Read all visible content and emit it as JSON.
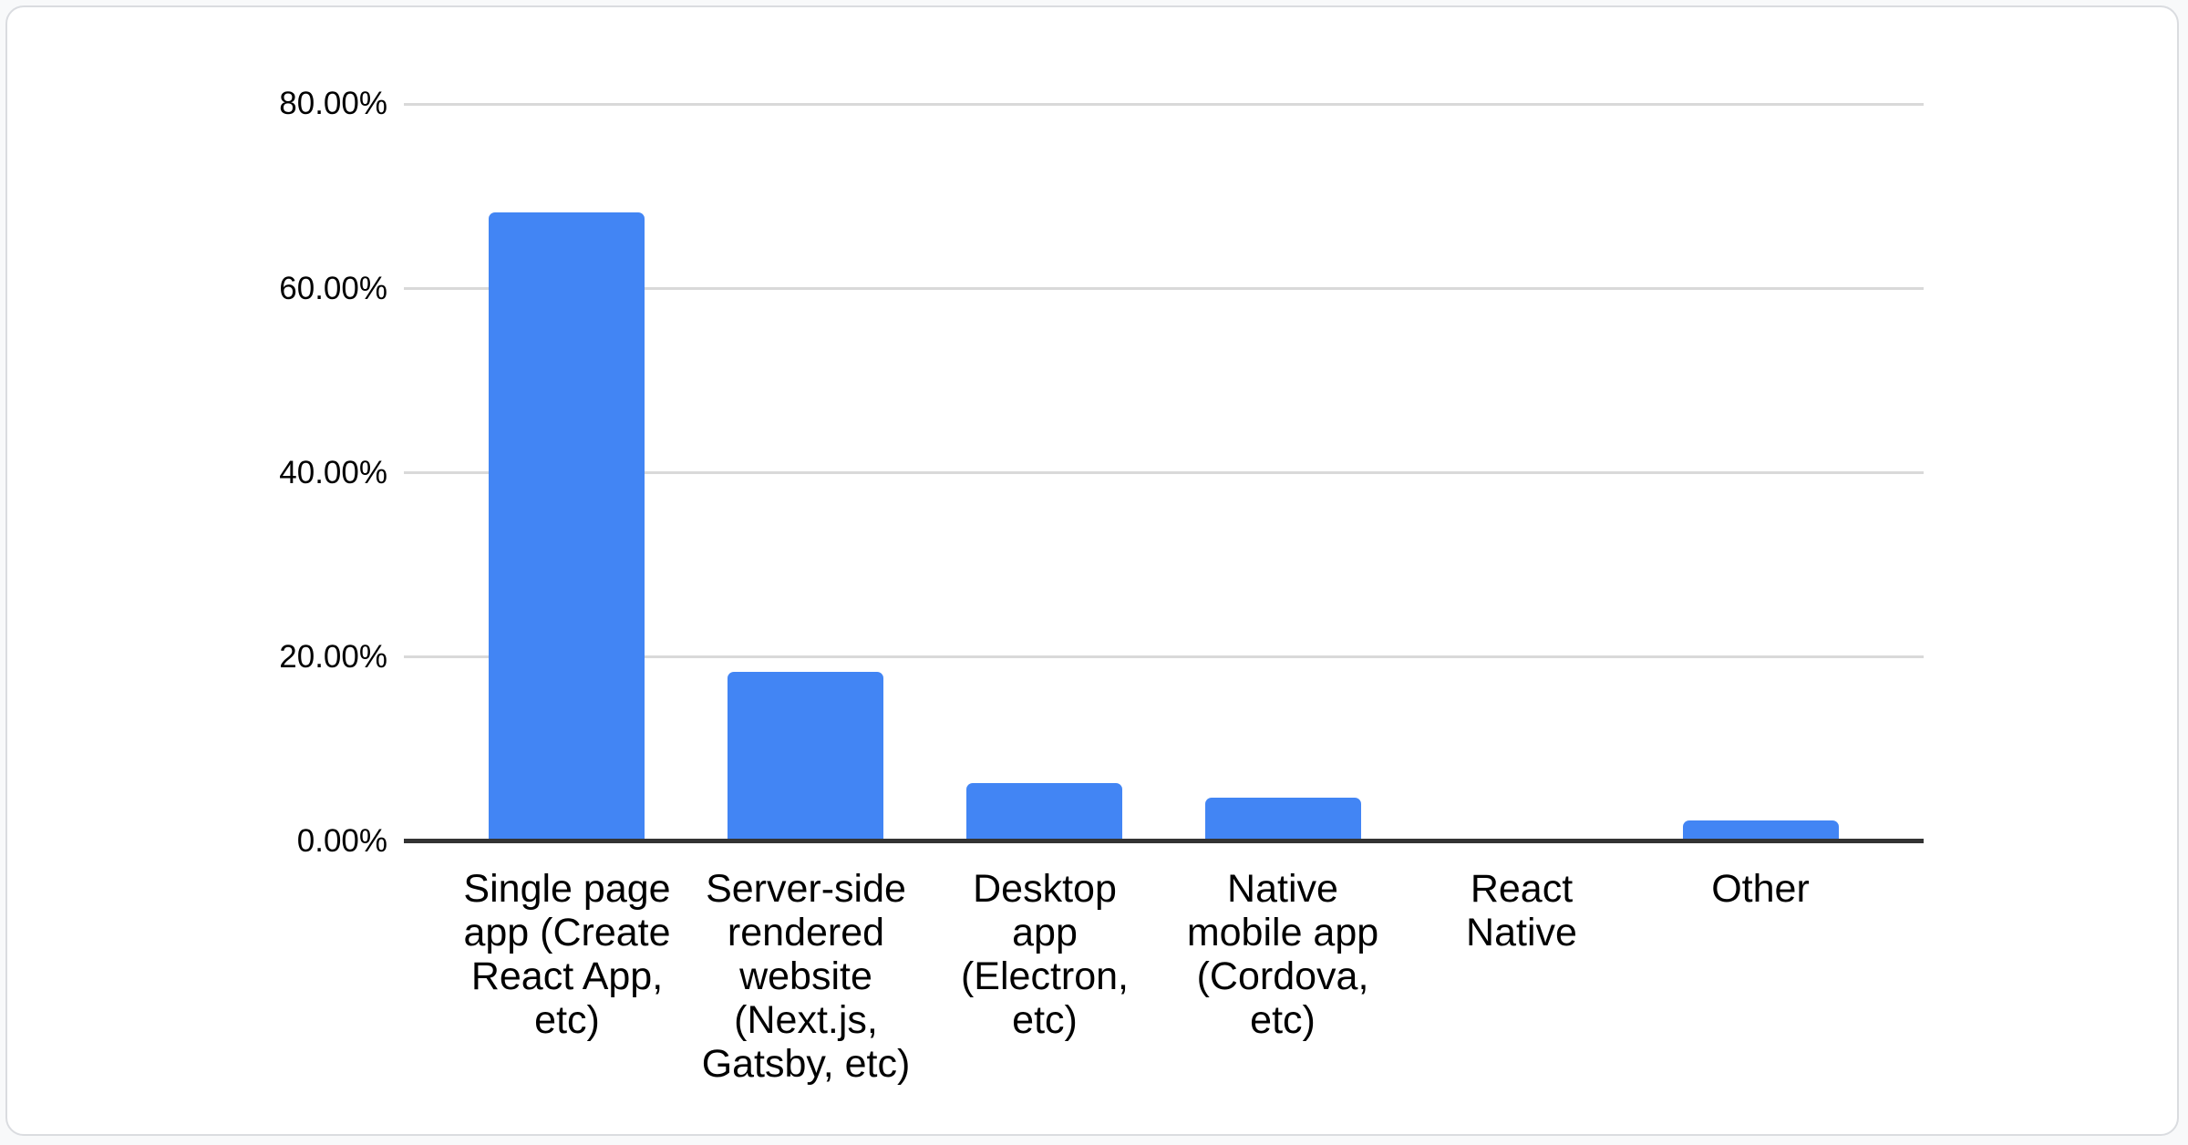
{
  "chart_data": {
    "type": "bar",
    "title": "",
    "xlabel": "",
    "ylabel": "",
    "unit": "%",
    "categories": [
      "Single page app (Create React App, etc)",
      "Server-side rendered website (Next.js, Gatsby, etc)",
      "Desktop app (Electron, etc)",
      "Native mobile app (Cordova, etc)",
      "React Native",
      "Other"
    ],
    "category_lines": [
      [
        "Single page",
        "app (Create",
        "React App,",
        "etc)"
      ],
      [
        "Server-side",
        "rendered",
        "website",
        "(Next.js,",
        "Gatsby, etc)"
      ],
      [
        "Desktop",
        "app",
        "(Electron,",
        "etc)"
      ],
      [
        "Native",
        "mobile app",
        "(Cordova,",
        "etc)"
      ],
      [
        "React",
        "Native"
      ],
      [
        "Other"
      ]
    ],
    "values": [
      68.3,
      18.4,
      6.3,
      4.7,
      0,
      2.3
    ],
    "ylim": [
      0,
      80
    ],
    "yticks": [
      {
        "value": 0,
        "label": "0.00%"
      },
      {
        "value": 20,
        "label": "20.00%"
      },
      {
        "value": 40,
        "label": "40.00%"
      },
      {
        "value": 60,
        "label": "60.00%"
      },
      {
        "value": 80,
        "label": "80.00%"
      }
    ],
    "grid": true,
    "legend": "none",
    "colors": {
      "bar": "#4285f4",
      "gridline": "#d9d9d9",
      "axis_line": "#333333",
      "text": "#000000",
      "card_background": "#ffffff",
      "card_border": "#dadce0",
      "page_background": "#f8f9fa"
    }
  }
}
